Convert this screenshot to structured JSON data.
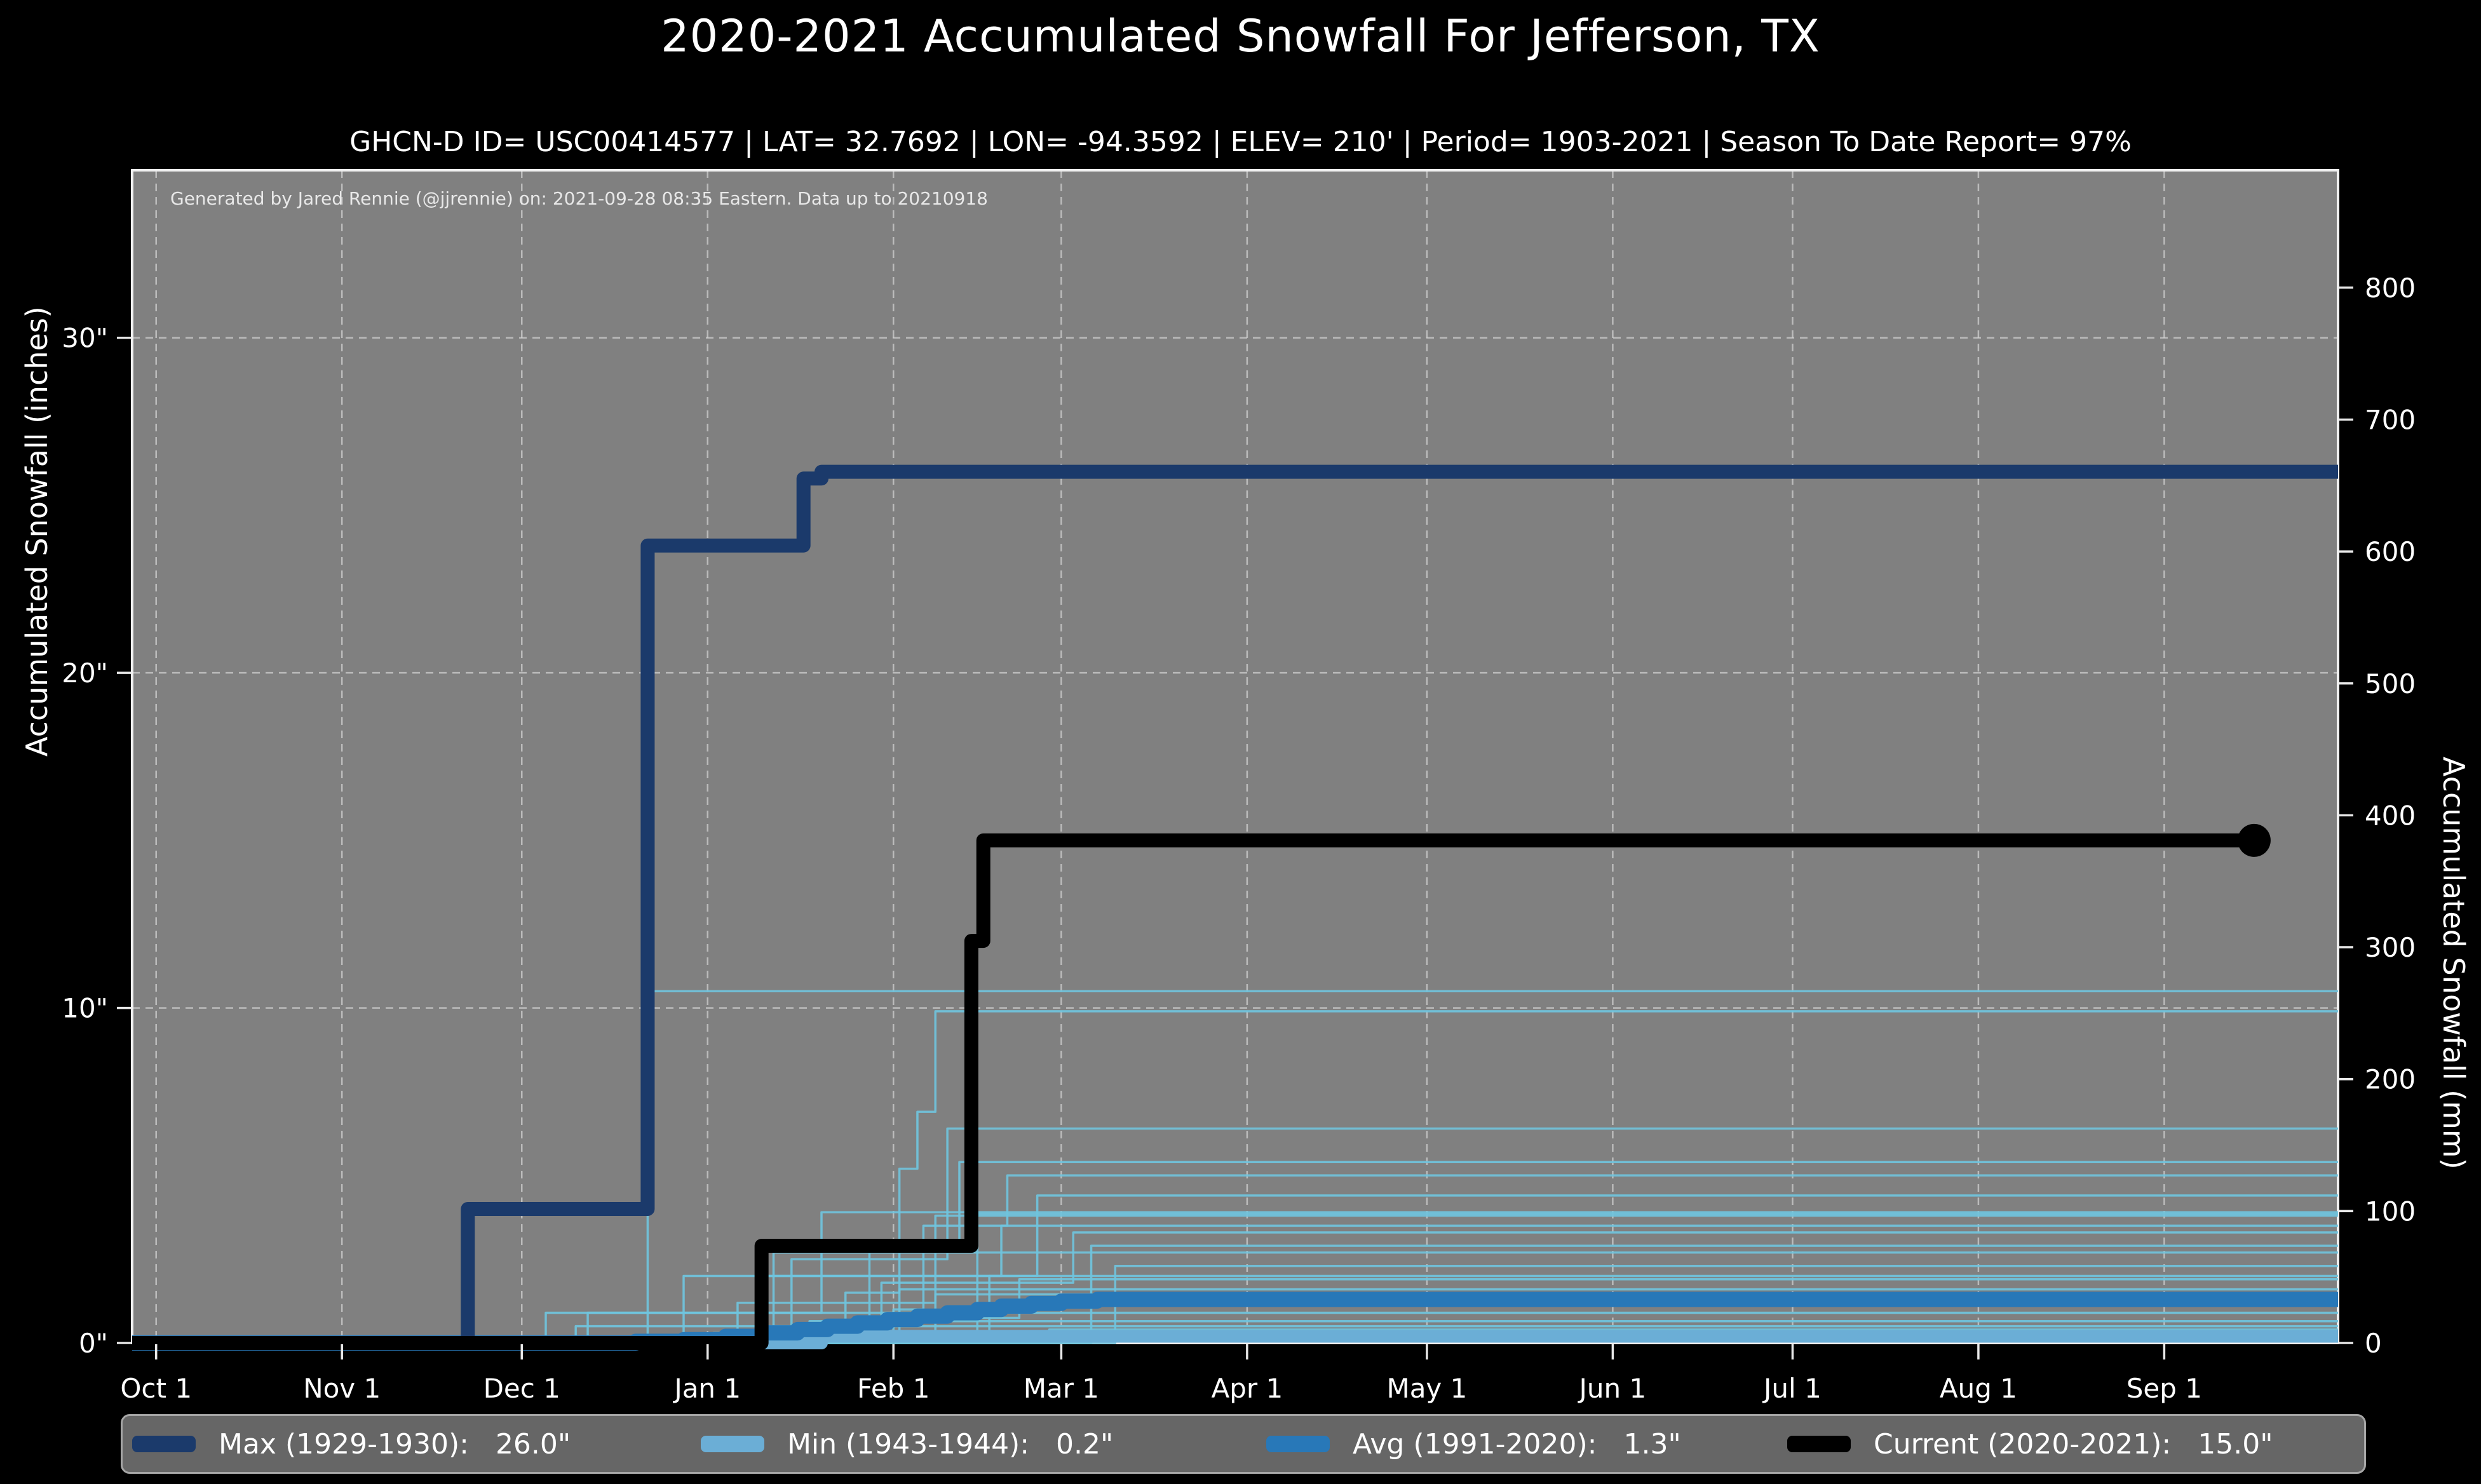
{
  "figure": {
    "title": "2020-2021 Accumulated Snowfall For Jefferson, TX",
    "subtitle": "GHCN-D ID= USC00414577 | LAT= 32.7692 | LON= -94.3592 | ELEV= 210' | Period= 1903-2021 | Season To Date Report= 97%",
    "attribution": "Generated by Jared Rennie (@jjrennie) on: 2021-09-28 08:35 Eastern. Data up to 20210918"
  },
  "colors": {
    "background": "#000000",
    "plot_bg": "#808080",
    "grid": "#cfcfcf",
    "spine": "#f0f0f0",
    "text": "#ffffff",
    "tick": "#e8e8e8",
    "legend_bg": "#666666",
    "legend_border": "#a6a6a6"
  },
  "chart_data": {
    "type": "line",
    "title": "2020-2021 Accumulated Snowfall For Jefferson, TX",
    "xlabel": "",
    "ylabel_left": "Accumulated Snowfall (inches)",
    "ylabel_right": "Accumulated Snowfall (mm)",
    "grid": true,
    "legend_position": "bottom",
    "x_axis": {
      "unit": "days since Oct 1",
      "domain": [
        -4,
        364
      ],
      "ticks": [
        {
          "label": "Oct 1",
          "day": 0
        },
        {
          "label": "Nov 1",
          "day": 31
        },
        {
          "label": "Dec 1",
          "day": 61
        },
        {
          "label": "Jan 1",
          "day": 92
        },
        {
          "label": "Feb 1",
          "day": 123
        },
        {
          "label": "Mar 1",
          "day": 151
        },
        {
          "label": "Apr 1",
          "day": 182
        },
        {
          "label": "May 1",
          "day": 212
        },
        {
          "label": "Jun 1",
          "day": 243
        },
        {
          "label": "Jul 1",
          "day": 273
        },
        {
          "label": "Aug 1",
          "day": 304
        },
        {
          "label": "Sep 1",
          "day": 335
        }
      ]
    },
    "y_axis_left": {
      "unit": "inches",
      "domain": [
        0,
        35
      ],
      "ticks": [
        {
          "label": "0\"",
          "value": 0
        },
        {
          "label": "10\"",
          "value": 10
        },
        {
          "label": "20\"",
          "value": 20
        },
        {
          "label": "30\"",
          "value": 30
        }
      ]
    },
    "y_axis_right": {
      "unit": "mm",
      "mm_per_inch": 25.4,
      "ticks": [
        0,
        100,
        200,
        300,
        400,
        500,
        600,
        700,
        800
      ]
    },
    "series": [
      {
        "id": "max",
        "name": "Max (1929-1930)",
        "final_value_in": 26.0,
        "color": "#1b3a6b",
        "width": 22,
        "z": 3,
        "end_day": 364,
        "end_marker": false,
        "points": [
          [
            -4,
            0
          ],
          [
            52,
            4.0
          ],
          [
            82,
            23.8
          ],
          [
            108,
            25.8
          ],
          [
            111,
            26.0
          ]
        ]
      },
      {
        "id": "min",
        "name": "Min (1943-1944)",
        "final_value_in": 0.2,
        "color": "#6baed6",
        "width": 20,
        "z": 1,
        "end_day": 364,
        "end_marker": false,
        "points": [
          [
            -4,
            0
          ],
          [
            111,
            0.2
          ]
        ]
      },
      {
        "id": "avg",
        "name": "Avg (1991-2020)",
        "final_value_in": 1.3,
        "color": "#2878b8",
        "width": 24,
        "z": 2,
        "end_day": 364,
        "end_marker": false,
        "points": [
          [
            -4,
            0
          ],
          [
            80,
            0.05
          ],
          [
            88,
            0.1
          ],
          [
            95,
            0.2
          ],
          [
            101,
            0.3
          ],
          [
            107,
            0.4
          ],
          [
            112,
            0.5
          ],
          [
            117,
            0.6
          ],
          [
            122,
            0.7
          ],
          [
            127,
            0.8
          ],
          [
            132,
            0.9
          ],
          [
            137,
            1.0
          ],
          [
            141,
            1.1
          ],
          [
            146,
            1.18
          ],
          [
            151,
            1.25
          ],
          [
            157,
            1.3
          ]
        ]
      },
      {
        "id": "current",
        "name": "Current (2020-2021)",
        "final_value_in": 15.0,
        "color": "#000000",
        "width": 22,
        "z": 4,
        "end_day": 350,
        "end_marker": true,
        "marker_radius": 26,
        "points": [
          [
            -4,
            0
          ],
          [
            101,
            2.9
          ],
          [
            136,
            12.0
          ],
          [
            138,
            15.0
          ]
        ]
      }
    ],
    "background_seasons": {
      "note": "other seasons 1903-2021, estimated step series [day, inches]",
      "color": "#6fc4de",
      "width": 3.5,
      "opacity": 0.9,
      "lines": [
        [
          [
            -4,
            0
          ],
          [
            82,
            10.5
          ]
        ],
        [
          [
            -4,
            0
          ],
          [
            115,
            1.5
          ],
          [
            124,
            5.2
          ],
          [
            127,
            6.9
          ],
          [
            130,
            9.9
          ]
        ],
        [
          [
            -4,
            0
          ],
          [
            106,
            2.5
          ],
          [
            132,
            6.4
          ]
        ],
        [
          [
            -4,
            0
          ],
          [
            119,
            3.0
          ],
          [
            134,
            5.4
          ]
        ],
        [
          [
            -4,
            0
          ],
          [
            123,
            1.0
          ],
          [
            128,
            3.5
          ],
          [
            142,
            5.0
          ]
        ],
        [
          [
            -4,
            0
          ],
          [
            101,
            2.0
          ],
          [
            147,
            4.4
          ]
        ],
        [
          [
            -4,
            0
          ],
          [
            72,
            0.9
          ],
          [
            111,
            3.9
          ]
        ],
        [
          [
            -4,
            0
          ],
          [
            137,
            3.85
          ]
        ],
        [
          [
            -4,
            0
          ],
          [
            97,
            1.2
          ],
          [
            130,
            3.8
          ]
        ],
        [
          [
            -4,
            0
          ],
          [
            139,
            2.0
          ],
          [
            141,
            3.5
          ]
        ],
        [
          [
            -4,
            0
          ],
          [
            121,
            1.8
          ],
          [
            153,
            3.3
          ]
        ],
        [
          [
            -4,
            0
          ],
          [
            156,
            2.9
          ]
        ],
        [
          [
            -4,
            0
          ],
          [
            103,
            2.7
          ]
        ],
        [
          [
            -4,
            0
          ],
          [
            160,
            2.3
          ]
        ],
        [
          [
            -4,
            0
          ],
          [
            88,
            2.0
          ]
        ],
        [
          [
            -4,
            0
          ],
          [
            124,
            1.6
          ]
        ],
        [
          [
            -4,
            0
          ],
          [
            65,
            0.9
          ]
        ],
        [
          [
            -4,
            0
          ],
          [
            109,
            0.65
          ]
        ],
        [
          [
            -4,
            0
          ],
          [
            70,
            0.5
          ]
        ],
        [
          [
            -4,
            0
          ],
          [
            149,
            0.4
          ]
        ],
        [
          [
            -4,
            0
          ],
          [
            93,
            0.3
          ]
        ],
        [
          [
            -4,
            0
          ],
          [
            130,
            1.45
          ]
        ],
        [
          [
            -4,
            0
          ],
          [
            118,
            0.75
          ],
          [
            144,
            1.9
          ]
        ]
      ]
    }
  },
  "legend": {
    "items": [
      {
        "label": "Max (1929-1930):",
        "value": "26.0\"",
        "color": "#1b3a6b"
      },
      {
        "label": "Min (1943-1944):",
        "value": "0.2\"",
        "color": "#6baed6"
      },
      {
        "label": "Avg (1991-2020):",
        "value": "1.3\"",
        "color": "#2878b8"
      },
      {
        "label": "Current (2020-2021):",
        "value": "15.0\"",
        "color": "#000000"
      }
    ]
  }
}
